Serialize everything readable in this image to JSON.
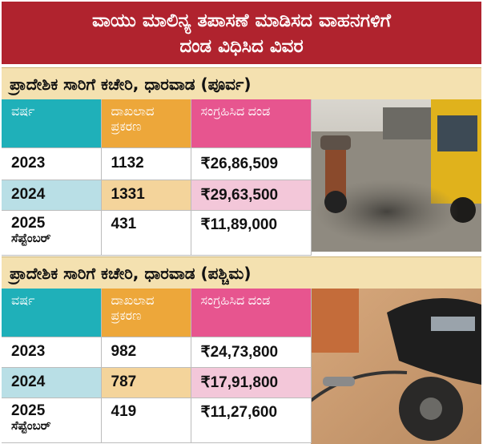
{
  "title": {
    "line1": "ವಾಯು ಮಾಲಿನ್ಯ ತಪಾಸಣೆ ಮಾಡಿಸದ ವಾಹನಗಳಿಗೆ",
    "line2": "ದಂಡ ವಿಧಿಸಿದ ವಿವರ"
  },
  "columns": {
    "year": "ವರ್ಷ",
    "cases_line1": "ದಾಖಲಾದ",
    "cases_line2": "ಪ್ರಕರಣ",
    "fine": "ಸಂಗ್ರಹಿಸಿದ ದಂಡ"
  },
  "sections": [
    {
      "heading": "ಪ್ರಾದೇಶಿಕ ಸಾರಿಗೆ ಕಚೇರಿ, ಧಾರವಾಡ (ಪೂರ್ವ)",
      "rows": [
        {
          "year": "2023",
          "year_note": "",
          "cases": "1132",
          "fine": "₹26,86,509"
        },
        {
          "year": "2024",
          "year_note": "",
          "cases": "1331",
          "fine": "₹29,63,500"
        },
        {
          "year": "2025",
          "year_note": "ಸೆಪ್ಟೆಂಬರ್",
          "cases": "431",
          "fine": "₹11,89,000"
        }
      ]
    },
    {
      "heading": "ಪ್ರಾದೇಶಿಕ ಸಾರಿಗೆ ಕಚೇರಿ, ಧಾರವಾಡ (ಪಶ್ಚಿಮ)",
      "rows": [
        {
          "year": "2023",
          "year_note": "",
          "cases": "982",
          "fine": "₹24,73,800"
        },
        {
          "year": "2024",
          "year_note": "",
          "cases": "787",
          "fine": "₹17,91,800"
        },
        {
          "year": "2025",
          "year_note": "ಸೆಪ್ಟೆಂಬರ್",
          "cases": "419",
          "fine": "₹11,27,600"
        }
      ]
    }
  ],
  "colors": {
    "title_band": "#b0232e",
    "section_band": "#f4e1b0",
    "year_header": "#1fb0b9",
    "cases_header": "#eda73a",
    "fine_header": "#e7558f"
  }
}
